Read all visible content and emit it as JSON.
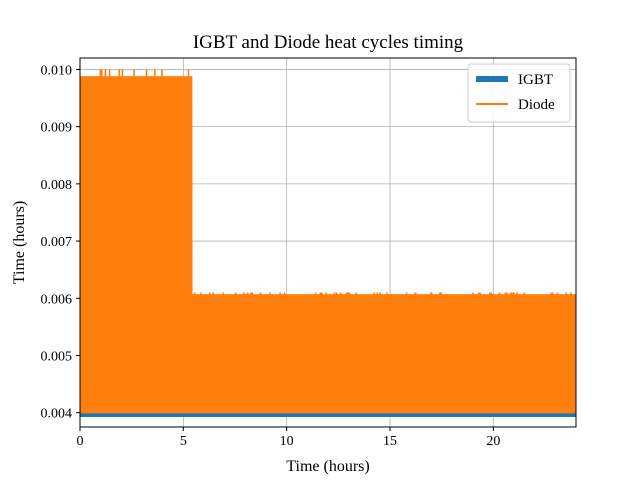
{
  "chart_data": {
    "type": "line",
    "title": "IGBT and Diode heat cycles timing",
    "xlabel": "Time (hours)",
    "ylabel": "Time (hours)",
    "xlim": [
      0,
      24
    ],
    "ylim": [
      0.00375,
      0.0102
    ],
    "x_ticks": [
      0,
      5,
      10,
      15,
      20
    ],
    "x_tick_labels": [
      "0",
      "5",
      "10",
      "15",
      "20"
    ],
    "y_ticks": [
      0.004,
      0.005,
      0.006,
      0.007,
      0.008,
      0.009,
      0.01
    ],
    "y_tick_labels": [
      "0.004",
      "0.005",
      "0.006",
      "0.007",
      "0.008",
      "0.009",
      "0.010"
    ],
    "grid": true,
    "legend_position": "top-right",
    "series": [
      {
        "name": "IGBT",
        "color": "#1f77b4",
        "style": "thick-line",
        "description_values": {
          "low": 0.00395,
          "high": 0.00603,
          "x_start": 0,
          "x_end": 24
        }
      },
      {
        "name": "Diode",
        "color": "#ff7f0e",
        "style": "line",
        "segments": [
          {
            "x_start": 0.0,
            "x_end": 5.4,
            "low": 0.00399,
            "high": 0.00988,
            "peak": 0.01
          },
          {
            "x_start": 5.4,
            "x_end": 24.0,
            "low": 0.00399,
            "high": 0.00607,
            "peak": 0.0061
          }
        ]
      }
    ]
  }
}
